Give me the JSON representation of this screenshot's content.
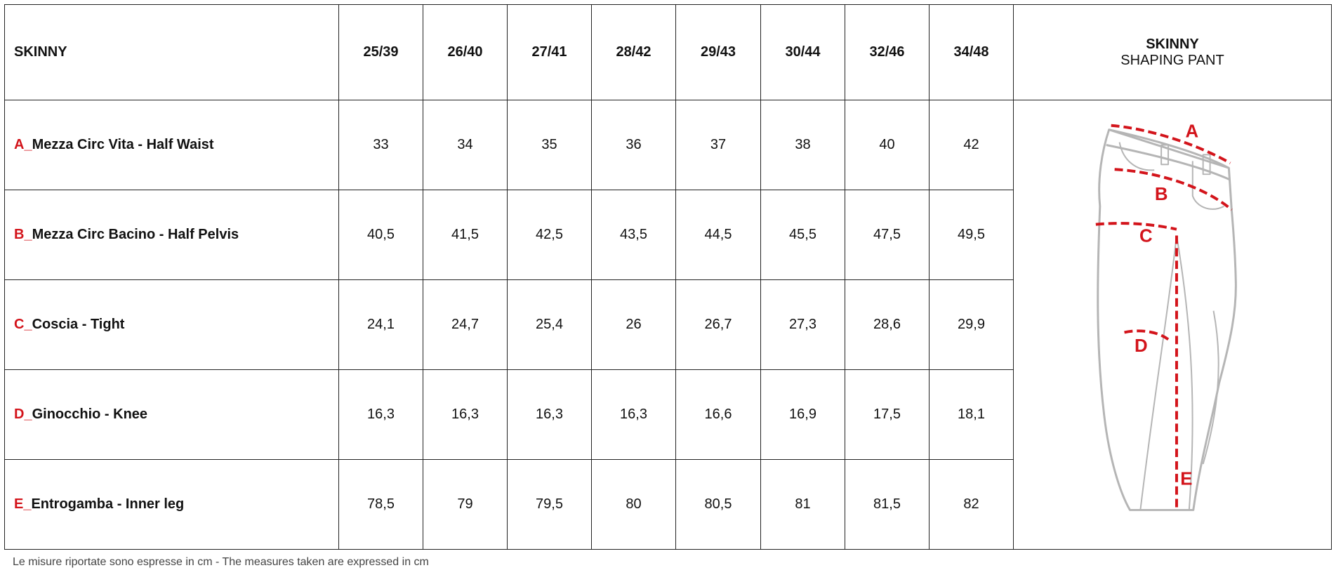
{
  "table": {
    "header": [
      "SKINNY",
      "25/39",
      "26/40",
      "27/41",
      "28/42",
      "29/43",
      "30/44",
      "32/46",
      "34/48"
    ],
    "product": {
      "title": "SKINNY",
      "subtitle": "SHAPING PANT"
    },
    "rows": [
      {
        "letter": "A_",
        "label": "Mezza Circ Vita - Half Waist",
        "values": [
          "33",
          "34",
          "35",
          "36",
          "37",
          "38",
          "40",
          "42"
        ]
      },
      {
        "letter": "B_",
        "label": "Mezza Circ Bacino - Half Pelvis",
        "values": [
          "40,5",
          "41,5",
          "42,5",
          "43,5",
          "44,5",
          "45,5",
          "47,5",
          "49,5"
        ]
      },
      {
        "letter": "C_",
        "label": "Coscia - Tight",
        "values": [
          "24,1",
          "24,7",
          "25,4",
          "26",
          "26,7",
          "27,3",
          "28,6",
          "29,9"
        ]
      },
      {
        "letter": "D_",
        "label": "Ginocchio - Knee",
        "values": [
          "16,3",
          "16,3",
          "16,3",
          "16,3",
          "16,6",
          "16,9",
          "17,5",
          "18,1"
        ]
      },
      {
        "letter": "E_",
        "label": "Entrogamba - Inner leg",
        "values": [
          "78,5",
          "79",
          "79,5",
          "80",
          "80,5",
          "81",
          "81,5",
          "82"
        ]
      }
    ]
  },
  "illustration": {
    "labels": [
      "A",
      "B",
      "C",
      "D",
      "E"
    ]
  },
  "footnote": "Le misure riportate sono espresse in cm - The measures taken are expressed in cm"
}
